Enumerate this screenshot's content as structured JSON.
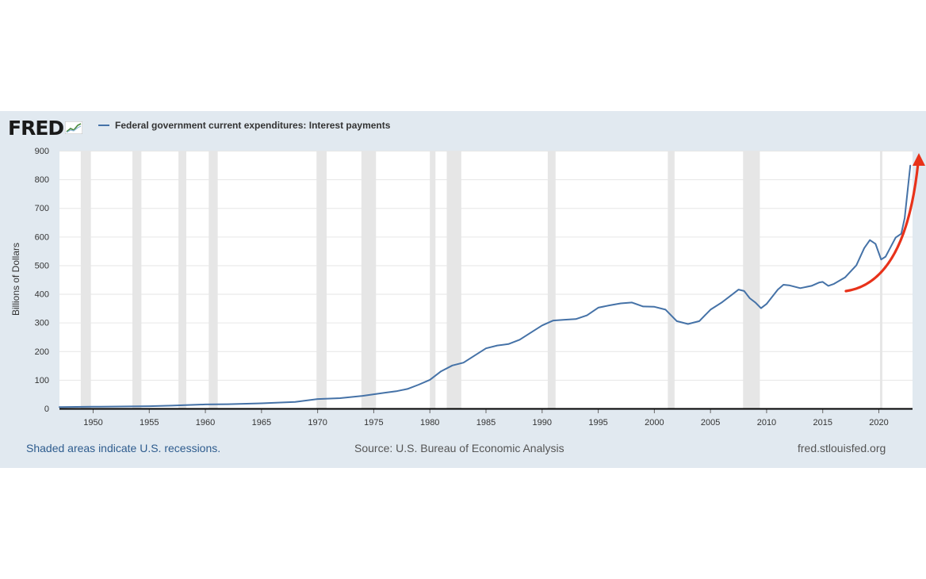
{
  "logo": {
    "text": "FRED"
  },
  "legend": {
    "label": "Federal government current expenditures: Interest payments",
    "color": "#4572a7"
  },
  "footer": {
    "recession_note": "Shaded areas indicate U.S. recessions.",
    "source": "Source: U.S. Bureau of Economic Analysis",
    "site": "fred.stlouisfed.org"
  },
  "colors": {
    "panel": "#e1e9f0",
    "series": "#4572a7",
    "recession": "#e6e6e6",
    "annotation_arrow": "#e8321a"
  },
  "chart_data": {
    "type": "line",
    "ylabel": "Billions of Dollars",
    "xlabel": "",
    "xlim": [
      1947,
      2023
    ],
    "ylim": [
      0,
      900
    ],
    "grid": true,
    "x_ticks": [
      1950,
      1955,
      1960,
      1965,
      1970,
      1975,
      1980,
      1985,
      1990,
      1995,
      2000,
      2005,
      2010,
      2015,
      2020
    ],
    "y_ticks": [
      0,
      100,
      200,
      300,
      400,
      500,
      600,
      700,
      800,
      900
    ],
    "recessions": [
      [
        1948.9,
        1949.8
      ],
      [
        1953.5,
        1954.3
      ],
      [
        1957.6,
        1958.3
      ],
      [
        1960.3,
        1961.1
      ],
      [
        1969.9,
        1970.8
      ],
      [
        1973.9,
        1975.2
      ],
      [
        1980.0,
        1980.5
      ],
      [
        1981.5,
        1982.8
      ],
      [
        1990.5,
        1991.2
      ],
      [
        2001.2,
        2001.8
      ],
      [
        2007.9,
        2009.4
      ],
      [
        2020.1,
        2020.3
      ]
    ],
    "series": [
      {
        "name": "Federal government current expenditures: Interest payments",
        "x": [
          1947,
          1950,
          1955,
          1957,
          1960,
          1962,
          1965,
          1968,
          1970,
          1972,
          1974,
          1976,
          1977,
          1978,
          1979,
          1980,
          1981,
          1982,
          1983,
          1984,
          1985,
          1986,
          1987,
          1988,
          1989,
          1990,
          1991,
          1992,
          1993,
          1994,
          1995,
          1996,
          1997,
          1998,
          1999,
          2000,
          2001,
          2002,
          2003,
          2004,
          2005,
          2006,
          2007,
          2007.5,
          2008,
          2008.5,
          2009,
          2009.5,
          2010,
          2011,
          2011.5,
          2012,
          2013,
          2014,
          2014.7,
          2015,
          2015.5,
          2016,
          2017,
          2018,
          2018.7,
          2019.2,
          2019.7,
          2020.2,
          2020.6,
          2021,
          2021.5,
          2022,
          2022.3,
          2022.8
        ],
        "y": [
          5,
          6,
          8,
          10,
          14,
          15,
          18,
          23,
          33,
          36,
          44,
          55,
          60,
          68,
          83,
          100,
          130,
          150,
          160,
          185,
          210,
          220,
          225,
          240,
          265,
          290,
          307,
          310,
          312,
          325,
          352,
          360,
          367,
          370,
          356,
          355,
          345,
          305,
          295,
          305,
          345,
          370,
          400,
          415,
          410,
          385,
          370,
          350,
          365,
          415,
          432,
          430,
          420,
          428,
          440,
          442,
          428,
          435,
          458,
          500,
          560,
          588,
          575,
          520,
          530,
          560,
          597,
          610,
          665,
          848
        ]
      }
    ]
  }
}
